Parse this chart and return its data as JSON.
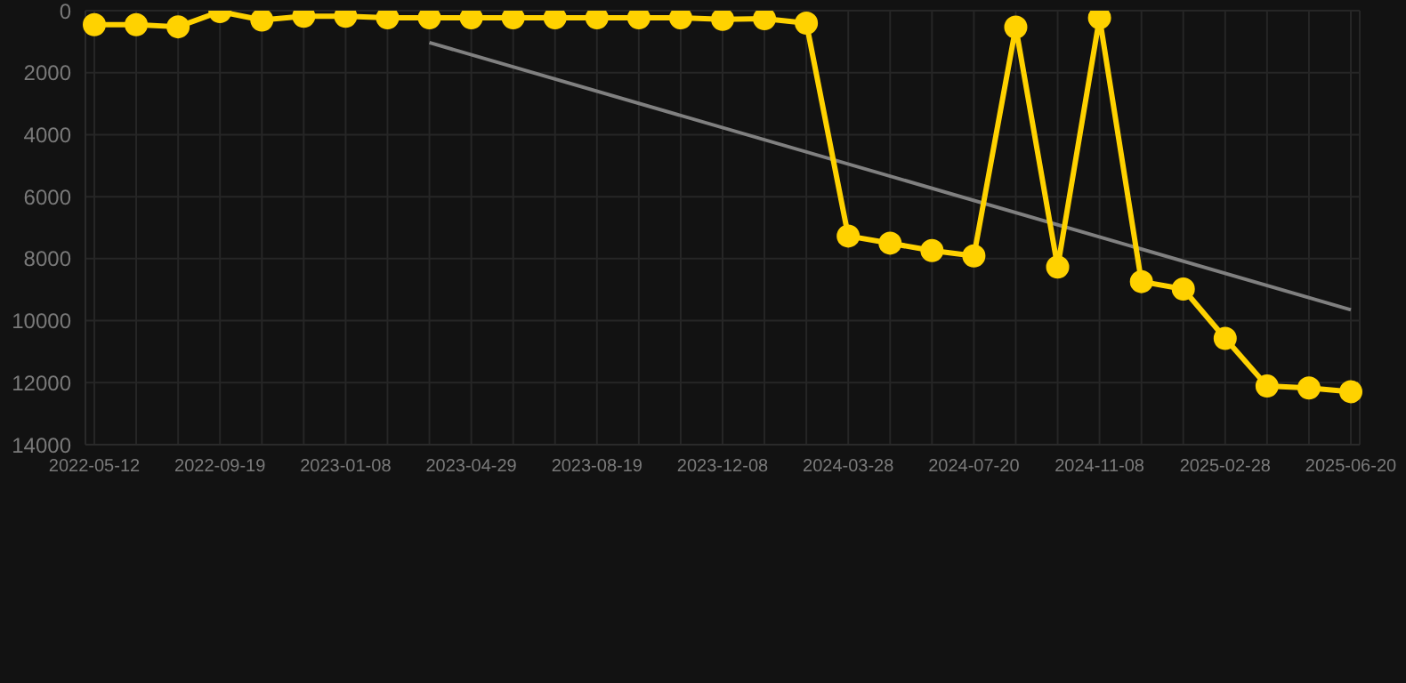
{
  "chart_data": {
    "type": "line",
    "categories": [
      "2022-05-12",
      null,
      null,
      "2022-09-19",
      null,
      null,
      "2023-01-08",
      null,
      null,
      "2023-04-29",
      null,
      null,
      "2023-08-19",
      null,
      null,
      "2023-12-08",
      null,
      null,
      "2024-03-28",
      null,
      null,
      "2024-07-20",
      null,
      null,
      "2024-11-08",
      null,
      null,
      "2025-02-28",
      null,
      null,
      "2025-06-20"
    ],
    "series": [
      {
        "color": "#ffd200",
        "marker": "circle",
        "values": [
          450,
          450,
          520,
          30,
          300,
          180,
          180,
          230,
          230,
          230,
          230,
          230,
          230,
          230,
          230,
          280,
          260,
          400,
          7270,
          7500,
          7740,
          7910,
          530,
          8270,
          230,
          8740,
          8980,
          10570,
          12110,
          12170,
          12290
        ]
      },
      {
        "type": "line",
        "color": "#808080",
        "marker": "none",
        "values": [
          null,
          null,
          null,
          null,
          null,
          null,
          null,
          null,
          1030,
          null,
          null,
          null,
          null,
          null,
          null,
          null,
          null,
          null,
          null,
          null,
          null,
          null,
          null,
          null,
          null,
          null,
          null,
          null,
          null,
          null,
          9650
        ]
      }
    ],
    "ylim": [
      14000,
      0
    ],
    "yticks": [
      0,
      2000,
      4000,
      6000,
      8000,
      10000,
      12000,
      14000
    ],
    "grid": true
  }
}
